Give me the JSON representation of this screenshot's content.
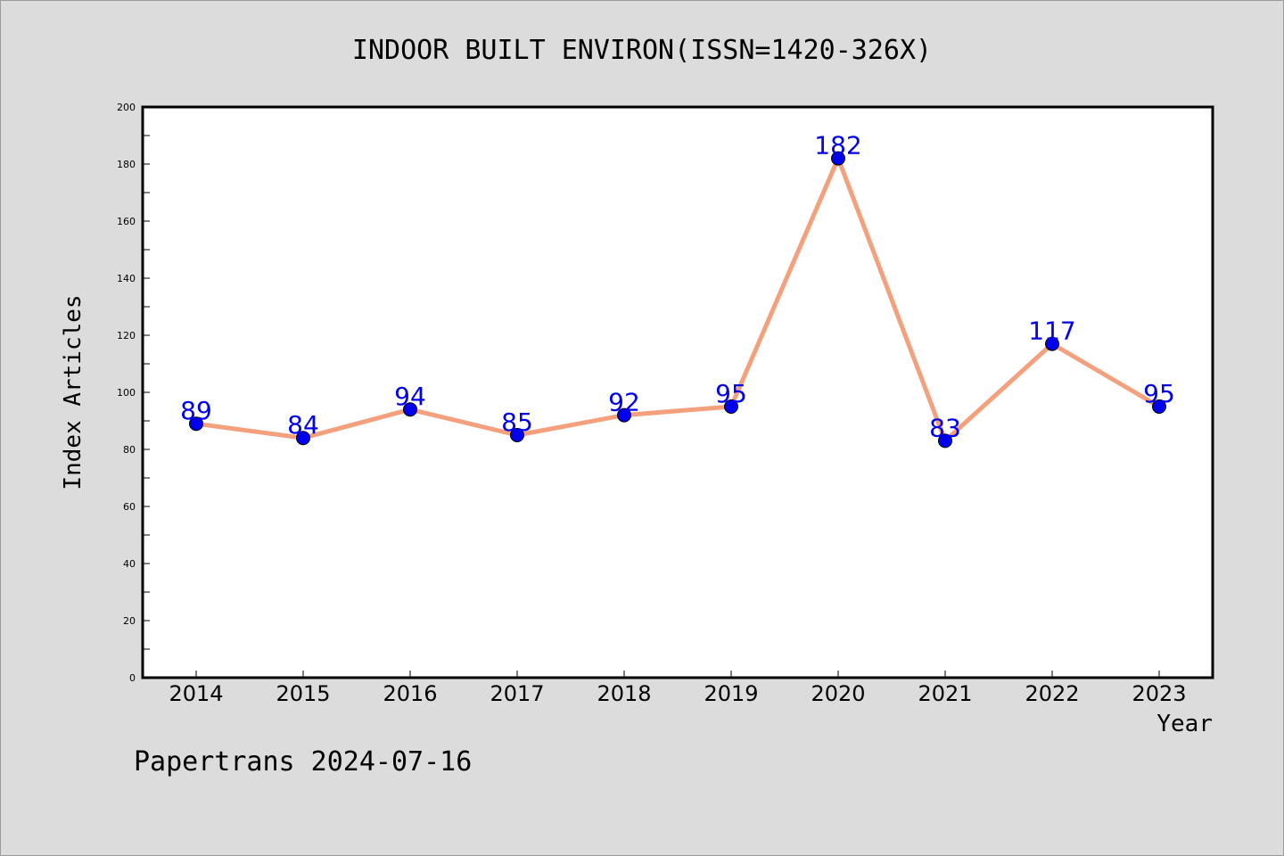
{
  "colors": {
    "background": "#dcdcdc",
    "plot_background": "#ffffff",
    "line": "#f4a07c",
    "marker": "#0000ee",
    "data_label": "#0000ee",
    "text": "#000000"
  },
  "chart_data": {
    "type": "line",
    "title": "INDOOR BUILT ENVIRON(ISSN=1420-326X)",
    "xlabel": "Year",
    "ylabel": "Index Articles",
    "categories": [
      "2014",
      "2015",
      "2016",
      "2017",
      "2018",
      "2019",
      "2020",
      "2021",
      "2022",
      "2023"
    ],
    "series": [
      {
        "values": [
          89,
          84,
          94,
          85,
          92,
          95,
          182,
          83,
          117,
          95
        ]
      }
    ],
    "ylim": [
      0,
      200
    ],
    "y_major_ticks": [
      0,
      20,
      40,
      60,
      80,
      100,
      120,
      140,
      160,
      180,
      200
    ],
    "y_minor_step": 10,
    "grid": false,
    "data_labels": true,
    "marker": "circle"
  },
  "footer": {
    "credit": "Papertrans 2024-07-16"
  }
}
